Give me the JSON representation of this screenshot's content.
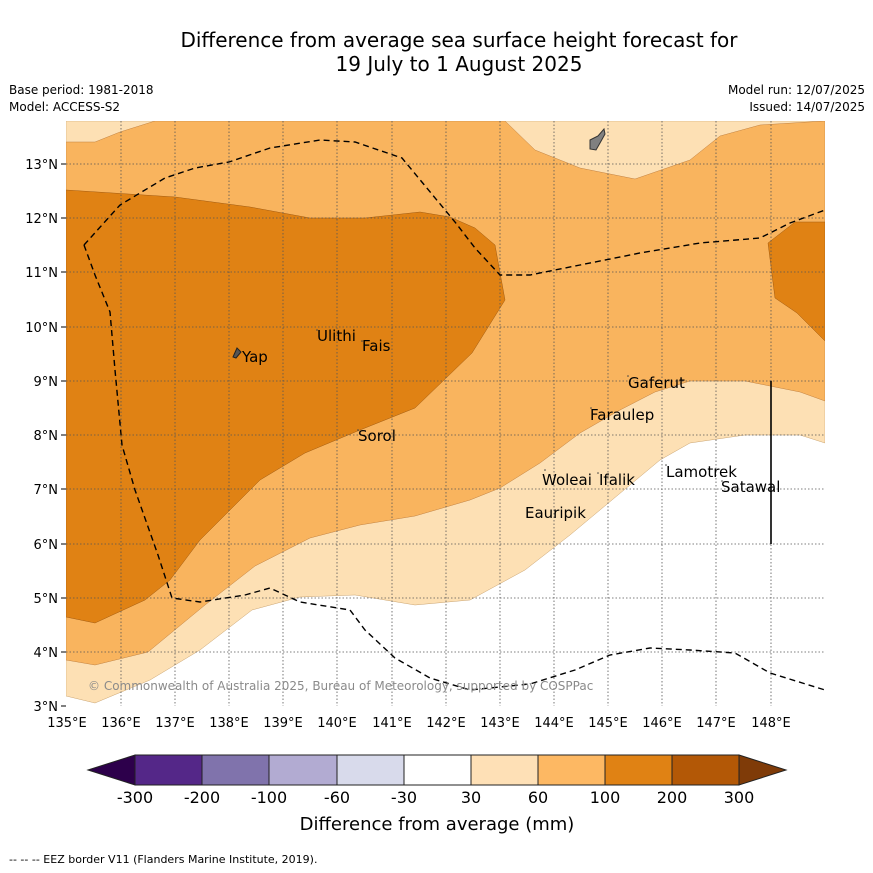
{
  "header": {
    "title_line1": "Difference from average sea surface height forecast for",
    "title_line2": "19 July to 1 August 2025",
    "base_period": "Base period: 1981-2018",
    "model": "Model: ACCESS-S2",
    "model_run": "Model run: 12/07/2025",
    "issued": "Issued: 14/07/2025"
  },
  "map": {
    "lat_labels": [
      "13°N",
      "12°N",
      "11°N",
      "10°N",
      "9°N",
      "8°N",
      "7°N",
      "6°N",
      "5°N",
      "4°N",
      "3°N"
    ],
    "lon_labels": [
      "135°E",
      "136°E",
      "137°E",
      "138°E",
      "139°E",
      "140°E",
      "141°E",
      "142°E",
      "143°E",
      "144°E",
      "145°E",
      "146°E",
      "147°E",
      "148°E"
    ],
    "places": {
      "yap": "Yap",
      "ulithi": "Ulithi",
      "fais": "Fais",
      "sorol": "Sorol",
      "gaferut": "Gaferut",
      "faraulep": "Faraulep",
      "lamotrek": "Lamotrek",
      "satawal": "Satawal",
      "woleai": "Woleai",
      "ifalik": "Ifalik",
      "eauripik": "Eauripik"
    },
    "copyright": "© Commonwealth of Australia 2025, Bureau of Meteorology, supported by COSPPac",
    "colors": {
      "c30_60": "#fde0b4",
      "c60_100": "#f9b45e",
      "c100_200": "#e08214",
      "c200_300": "#b35806",
      "land": "#808080"
    }
  },
  "colorbar": {
    "ticks": [
      "-300",
      "-200",
      "-100",
      "-60",
      "-30",
      "30",
      "60",
      "100",
      "200",
      "300"
    ],
    "label": "Difference from average (mm)",
    "colors": [
      "#2d004b",
      "#542788",
      "#8073ac",
      "#b2abd2",
      "#d8daeb",
      "#ffffff",
      "#fee0b6",
      "#fdb863",
      "#e08214",
      "#b35806",
      "#7f3b08"
    ]
  },
  "footnote": "--  --  -- EEZ border V11 (Flanders Marine Institute, 2019)."
}
